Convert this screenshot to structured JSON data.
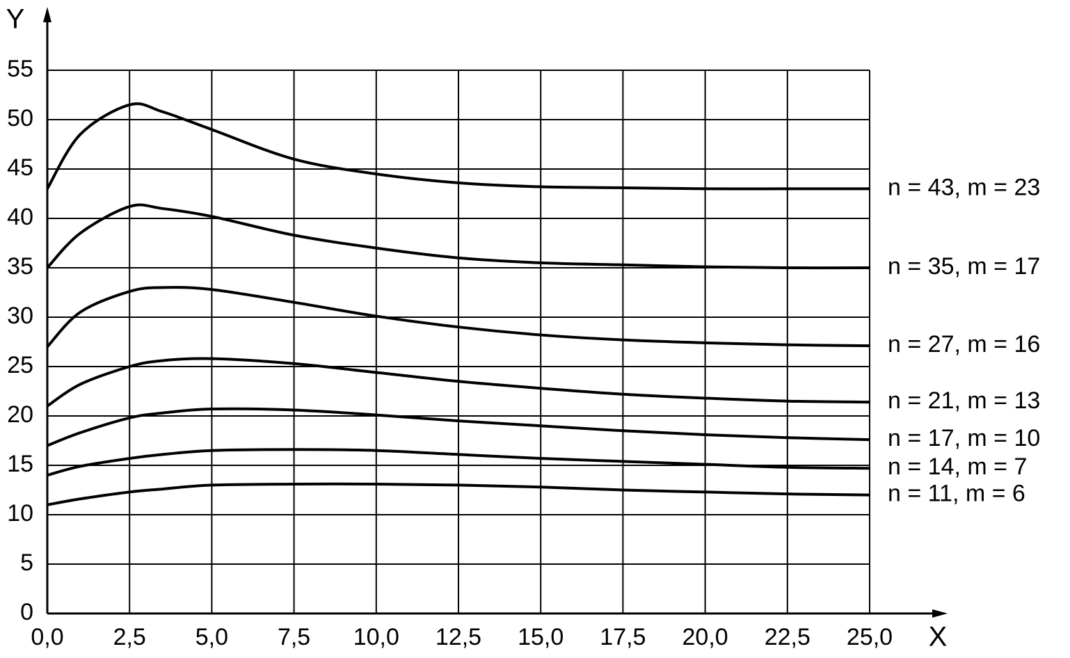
{
  "chart_data": {
    "type": "line",
    "x_label": "X",
    "y_label": "Y",
    "x": [
      0,
      1,
      2.5,
      3.5,
      5,
      7.5,
      10,
      12.5,
      15,
      17.5,
      20,
      22.5,
      25
    ],
    "series": [
      {
        "name": "n = 43, m = 23",
        "color": "#000000",
        "values": [
          43,
          48.5,
          51.5,
          50.8,
          49,
          46,
          44.5,
          43.6,
          43.2,
          43.1,
          43,
          43,
          43
        ]
      },
      {
        "name": "n = 35, m = 17",
        "color": "#000000",
        "values": [
          35,
          38.5,
          41.2,
          41,
          40.2,
          38.3,
          37,
          36,
          35.5,
          35.3,
          35.1,
          35,
          35
        ]
      },
      {
        "name": "n = 27, m = 16",
        "color": "#000000",
        "values": [
          27,
          30.5,
          32.6,
          33,
          32.8,
          31.5,
          30.1,
          29,
          28.2,
          27.7,
          27.4,
          27.2,
          27.1
        ]
      },
      {
        "name": "n = 21, m = 13",
        "color": "#000000",
        "values": [
          21,
          23.2,
          25,
          25.6,
          25.8,
          25.3,
          24.4,
          23.5,
          22.8,
          22.2,
          21.8,
          21.5,
          21.4
        ]
      },
      {
        "name": "n = 17, m = 10",
        "color": "#000000",
        "values": [
          17,
          18.3,
          19.8,
          20.3,
          20.7,
          20.6,
          20.1,
          19.5,
          19,
          18.5,
          18.1,
          17.8,
          17.6
        ]
      },
      {
        "name": "n = 14, m = 7",
        "color": "#000000",
        "values": [
          14,
          14.9,
          15.7,
          16.1,
          16.5,
          16.6,
          16.5,
          16.1,
          15.7,
          15.4,
          15.1,
          14.8,
          14.7
        ]
      },
      {
        "name": "n = 11, m = 6",
        "color": "#000000",
        "values": [
          11,
          11.6,
          12.3,
          12.6,
          13,
          13.1,
          13.1,
          13,
          12.8,
          12.5,
          12.3,
          12.1,
          12
        ]
      }
    ],
    "xlim": [
      0,
      25
    ],
    "xticks": [
      {
        "value": 0,
        "label": "0,0"
      },
      {
        "value": 2.5,
        "label": "2,5"
      },
      {
        "value": 5,
        "label": "5,0"
      },
      {
        "value": 7.5,
        "label": "7,5"
      },
      {
        "value": 10,
        "label": "10,0"
      },
      {
        "value": 12.5,
        "label": "12,5"
      },
      {
        "value": 15,
        "label": "15,0"
      },
      {
        "value": 17.5,
        "label": "17,5"
      },
      {
        "value": 20,
        "label": "20,0"
      },
      {
        "value": 22.5,
        "label": "22,5"
      },
      {
        "value": 25,
        "label": "25,0"
      }
    ],
    "ylim": [
      0,
      55
    ],
    "yticks": [
      0,
      5,
      10,
      15,
      20,
      25,
      30,
      35,
      40,
      45,
      50,
      55
    ],
    "grid": true
  }
}
